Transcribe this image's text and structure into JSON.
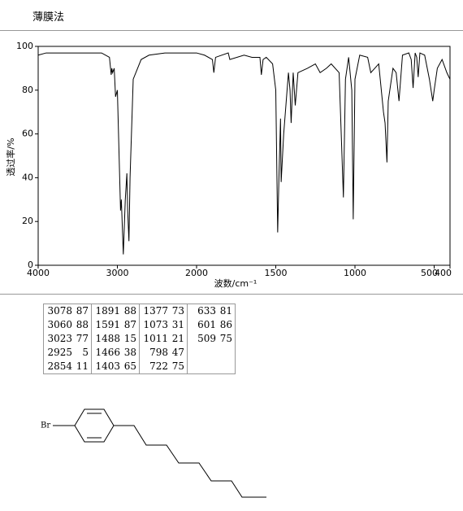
{
  "header": {
    "title": "薄膜法"
  },
  "chart_data": {
    "type": "line",
    "x": [
      4000,
      3900,
      3800,
      3600,
      3400,
      3200,
      3100,
      3078,
      3070,
      3060,
      3040,
      3023,
      3000,
      2960,
      2950,
      2925,
      2900,
      2880,
      2870,
      2854,
      2840,
      2800,
      2700,
      2600,
      2400,
      2200,
      2000,
      1950,
      1900,
      1891,
      1880,
      1800,
      1790,
      1700,
      1650,
      1600,
      1591,
      1580,
      1560,
      1520,
      1500,
      1488,
      1480,
      1470,
      1466,
      1450,
      1420,
      1410,
      1403,
      1390,
      1377,
      1360,
      1300,
      1250,
      1220,
      1180,
      1150,
      1100,
      1073,
      1060,
      1040,
      1020,
      1011,
      1000,
      970,
      920,
      900,
      850,
      820,
      810,
      798,
      790,
      760,
      740,
      722,
      700,
      660,
      645,
      633,
      620,
      610,
      601,
      590,
      560,
      530,
      509,
      500,
      480,
      450,
      420,
      400
    ],
    "series": [
      {
        "color": "#000000",
        "values": [
          96,
          97,
          97,
          97,
          97,
          97,
          95,
          87,
          90,
          88,
          90,
          77,
          80,
          25,
          30,
          5,
          30,
          42,
          25,
          11,
          40,
          85,
          94,
          96,
          97,
          97,
          97,
          96,
          94,
          88,
          95,
          97,
          94,
          96,
          95,
          95,
          87,
          94,
          95,
          92,
          80,
          15,
          40,
          67,
          38,
          60,
          88,
          80,
          65,
          88,
          73,
          88,
          90,
          92,
          88,
          90,
          92,
          88,
          31,
          85,
          95,
          80,
          21,
          85,
          96,
          95,
          88,
          92,
          70,
          65,
          47,
          75,
          90,
          88,
          75,
          96,
          97,
          94,
          81,
          97,
          95,
          86,
          97,
          96,
          85,
          75,
          80,
          90,
          94,
          88,
          85
        ]
      }
    ],
    "xlim": [
      4000,
      400
    ],
    "xticks": [
      4000,
      3000,
      2000,
      1500,
      1000,
      500,
      400
    ],
    "x_scale_break": 2000,
    "x_scale_factor_below_break": 2,
    "ylim": [
      0,
      100
    ],
    "yticks": [
      0,
      20,
      40,
      60,
      80,
      100
    ],
    "xlabel": "波数/cm⁻¹",
    "ylabel": "透过率/%"
  },
  "peak_table": {
    "columns": [
      [
        [
          3078,
          87
        ],
        [
          3060,
          88
        ],
        [
          3023,
          77
        ],
        [
          2925,
          5
        ],
        [
          2854,
          11
        ]
      ],
      [
        [
          1891,
          88
        ],
        [
          1591,
          87
        ],
        [
          1488,
          15
        ],
        [
          1466,
          38
        ],
        [
          1403,
          65
        ]
      ],
      [
        [
          1377,
          73
        ],
        [
          1073,
          31
        ],
        [
          1011,
          21
        ],
        [
          798,
          47
        ],
        [
          722,
          75
        ]
      ],
      [
        [
          633,
          81
        ],
        [
          601,
          86
        ],
        [
          509,
          75
        ]
      ]
    ]
  },
  "structure": {
    "atom": "Br"
  }
}
